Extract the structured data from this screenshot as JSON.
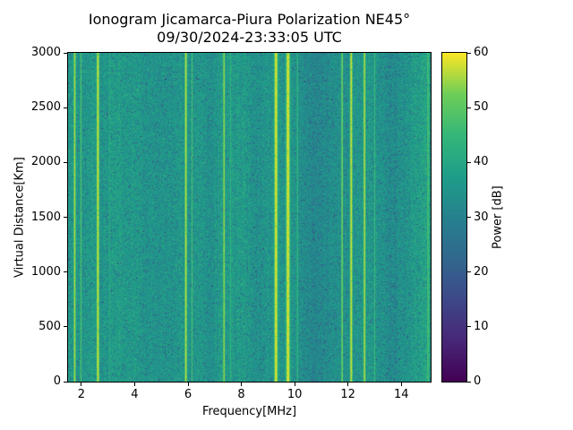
{
  "chart_data": {
    "type": "heatmap",
    "title": "Ionogram Jicamarca-Piura Polarization NE45°",
    "subtitle": "09/30/2024-23:33:05 UTC",
    "xlabel": "Frequency[MHz]",
    "ylabel": "Virtual Distance[Km]",
    "colorbar_label": "Power [dB]",
    "colormap": "viridis",
    "x_range": [
      1.5,
      15.1
    ],
    "y_range": [
      0,
      3000
    ],
    "clim": [
      0,
      60
    ],
    "x_ticks": [
      2,
      4,
      6,
      8,
      10,
      12,
      14
    ],
    "y_ticks": [
      0,
      500,
      1000,
      1500,
      2000,
      2500,
      3000
    ],
    "colorbar_ticks": [
      0,
      10,
      20,
      30,
      40,
      50,
      60
    ],
    "legend_position": "right-colorbar",
    "grid": false,
    "background_power_db": {
      "mean": 36,
      "noise_std": 3.2,
      "dark_speckle_prob": 0.05
    },
    "column_bands": [
      {
        "freq_mhz": 4.6,
        "width_mhz": 1.5,
        "delta_db": -1.0
      },
      {
        "freq_mhz": 10.9,
        "width_mhz": 0.9,
        "delta_db": -3.0
      },
      {
        "freq_mhz": 13.7,
        "width_mhz": 0.7,
        "delta_db": -2.5
      },
      {
        "freq_mhz": 14.7,
        "width_mhz": 0.5,
        "delta_db": 2.5
      }
    ],
    "rfi_stripes": [
      {
        "freq_mhz": 1.75,
        "width_mhz": 0.1,
        "power_db": 58
      },
      {
        "freq_mhz": 1.98,
        "width_mhz": 0.06,
        "power_db": 52
      },
      {
        "freq_mhz": 2.62,
        "width_mhz": 0.14,
        "power_db": 59
      },
      {
        "freq_mhz": 3.05,
        "width_mhz": 0.05,
        "power_db": 47
      },
      {
        "freq_mhz": 5.92,
        "width_mhz": 0.12,
        "power_db": 58
      },
      {
        "freq_mhz": 6.15,
        "width_mhz": 0.05,
        "power_db": 49
      },
      {
        "freq_mhz": 7.35,
        "width_mhz": 0.09,
        "power_db": 57
      },
      {
        "freq_mhz": 7.6,
        "width_mhz": 0.04,
        "power_db": 46
      },
      {
        "freq_mhz": 9.3,
        "width_mhz": 0.18,
        "power_db": 60
      },
      {
        "freq_mhz": 9.75,
        "width_mhz": 0.2,
        "power_db": 60
      },
      {
        "freq_mhz": 10.1,
        "width_mhz": 0.06,
        "power_db": 50
      },
      {
        "freq_mhz": 11.78,
        "width_mhz": 0.08,
        "power_db": 56
      },
      {
        "freq_mhz": 12.12,
        "width_mhz": 0.13,
        "power_db": 59
      },
      {
        "freq_mhz": 12.62,
        "width_mhz": 0.11,
        "power_db": 58
      },
      {
        "freq_mhz": 13.0,
        "width_mhz": 0.05,
        "power_db": 47
      },
      {
        "freq_mhz": 15.0,
        "width_mhz": 0.07,
        "power_db": 53
      }
    ]
  }
}
